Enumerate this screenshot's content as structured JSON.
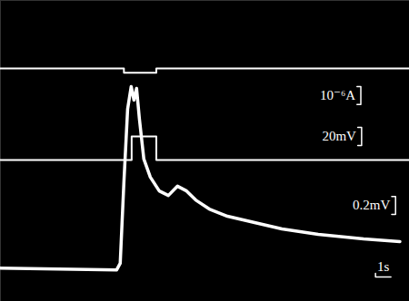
{
  "chart_data": {
    "type": "line",
    "xlim": [
      0,
      26.5
    ],
    "ylim": [
      0,
      100
    ],
    "tick_labels": false,
    "grid": false,
    "color": "#ffffff",
    "series": [
      {
        "x": [
          0,
          8.0,
          8.0,
          10.1,
          10.1,
          26.5
        ],
        "values": [
          77.4,
          77.4,
          76,
          76,
          77.4,
          77.4
        ]
      },
      {
        "x": [
          0,
          8.5,
          8.5,
          10.1,
          10.1,
          26.5
        ],
        "values": [
          47,
          47,
          54.8,
          54.8,
          47,
          47
        ]
      },
      {
        "x": [
          0,
          7.53,
          7.76,
          8.0,
          8.24,
          8.47,
          8.65,
          8.82,
          9.0,
          9.29,
          9.71,
          10.29,
          10.88,
          11.47,
          12.06,
          12.65,
          13.53,
          14.71,
          16.47,
          18.24,
          20.59,
          23.53,
          25.88
        ],
        "values": [
          11.1,
          10.5,
          12.7,
          39.8,
          63.9,
          71.4,
          66.9,
          70.8,
          60.8,
          47.3,
          41.3,
          36.7,
          35.2,
          38.3,
          36.7,
          33.7,
          30.7,
          28.3,
          26.2,
          24.1,
          22.3,
          20.8,
          19.9
        ]
      }
    ],
    "scale_bars": [
      {
        "label": "10⁻⁶A",
        "axis": "y",
        "length": 6
      },
      {
        "label": "20mV",
        "axis": "y",
        "length": 6
      },
      {
        "label": "0.2mV",
        "axis": "y",
        "length": 6
      },
      {
        "label": "1s",
        "axis": "x",
        "length": 1
      }
    ]
  }
}
